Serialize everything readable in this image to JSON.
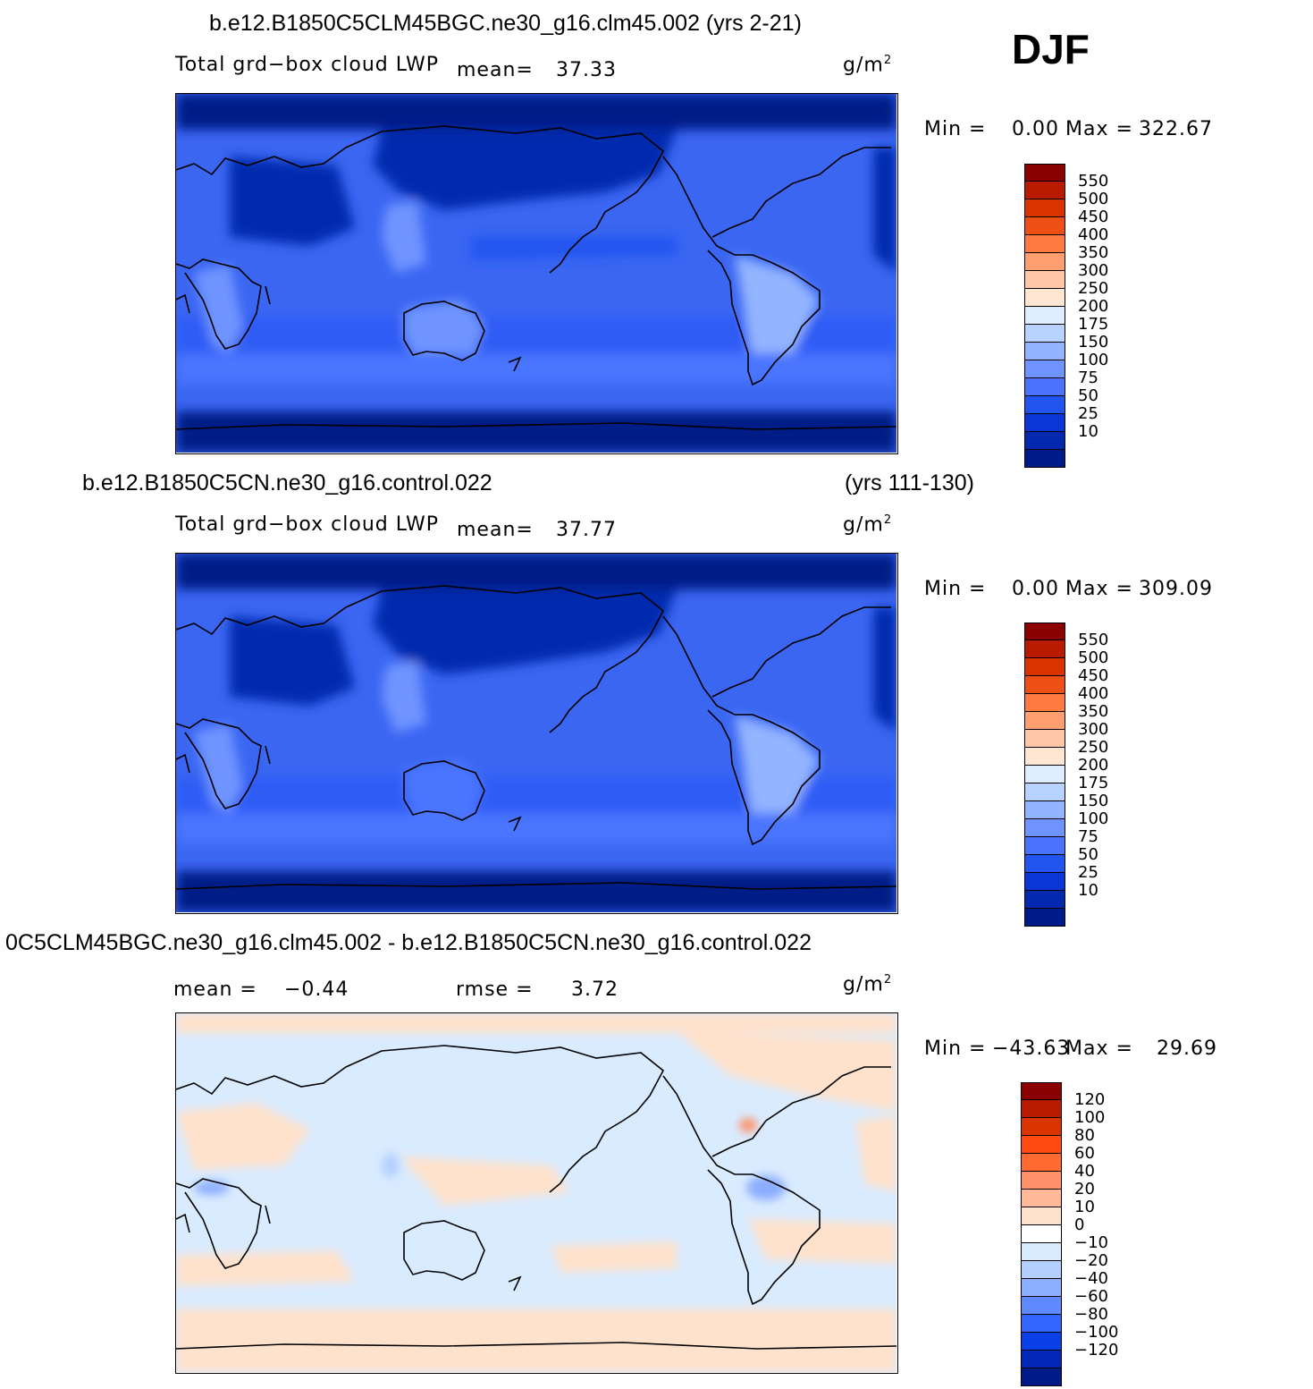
{
  "season": "DJF",
  "panels": [
    {
      "title_left": "b.e12.B1850C5CLM45BGC.ne30_g16.clm45.002 (yrs 2-21)",
      "title_right": "",
      "variable": "Total grd−box cloud LWP",
      "mean_label": "mean=",
      "mean_value": "37.33",
      "rmse_label": "",
      "rmse_value": "",
      "units": "g/m",
      "units_exp": "2",
      "min_label": "Min =",
      "min_value": "0.00",
      "max_label": "Max =",
      "max_value": "322.67",
      "palette": "blues",
      "colorbar": {
        "ticks": [
          "550",
          "500",
          "450",
          "400",
          "350",
          "300",
          "250",
          "200",
          "175",
          "150",
          "100",
          "75",
          "50",
          "25",
          "10"
        ],
        "colors": [
          "#8b0000",
          "#b81b00",
          "#d93400",
          "#ee4f15",
          "#ff7b40",
          "#ff9f70",
          "#ffc7a6",
          "#ffe6d3",
          "#dfeeff",
          "#b8d3ff",
          "#93b4ff",
          "#6f94ff",
          "#4a74ff",
          "#2255f0",
          "#0a36d6",
          "#032aae",
          "#001a87"
        ]
      }
    },
    {
      "title_left": "b.e12.B1850C5CN.ne30_g16.control.022",
      "title_right": "(yrs 111-130)",
      "variable": "Total grd−box cloud LWP",
      "mean_label": "mean=",
      "mean_value": "37.77",
      "rmse_label": "",
      "rmse_value": "",
      "units": "g/m",
      "units_exp": "2",
      "min_label": "Min =",
      "min_value": "0.00",
      "max_label": "Max =",
      "max_value": "309.09",
      "palette": "blues",
      "colorbar": {
        "ticks": [
          "550",
          "500",
          "450",
          "400",
          "350",
          "300",
          "250",
          "200",
          "175",
          "150",
          "100",
          "75",
          "50",
          "25",
          "10"
        ],
        "colors": [
          "#8b0000",
          "#b81b00",
          "#d93400",
          "#ee4f15",
          "#ff7b40",
          "#ff9f70",
          "#ffc7a6",
          "#ffe6d3",
          "#dfeeff",
          "#b8d3ff",
          "#93b4ff",
          "#6f94ff",
          "#4a74ff",
          "#2255f0",
          "#0a36d6",
          "#032aae",
          "#001a87"
        ]
      }
    },
    {
      "title_left": "0C5CLM45BGC.ne30_g16.clm45.002 - b.e12.B1850C5CN.ne30_g16.control.022",
      "title_right": "",
      "variable": "",
      "mean_label": "mean =",
      "mean_value": "−0.44",
      "rmse_label": "rmse =",
      "rmse_value": "3.72",
      "units": "g/m",
      "units_exp": "2",
      "min_label": "Min =",
      "min_value": "−43.63",
      "max_label": "Max =",
      "max_value": "29.69",
      "palette": "diff",
      "colorbar": {
        "ticks": [
          "120",
          "100",
          "80",
          "60",
          "40",
          "20",
          "10",
          "0",
          "−10",
          "−20",
          "−40",
          "−60",
          "−80",
          "−100",
          "−120"
        ],
        "colors": [
          "#8b0000",
          "#b81b00",
          "#d93400",
          "#ff4a10",
          "#ff6a30",
          "#ff9068",
          "#ffb898",
          "#ffe2cc",
          "#ffffff",
          "#d9ebff",
          "#b3d0ff",
          "#8caeff",
          "#5f8aff",
          "#3366ff",
          "#0a40e8",
          "#0327b8",
          "#001a87"
        ]
      }
    }
  ]
}
